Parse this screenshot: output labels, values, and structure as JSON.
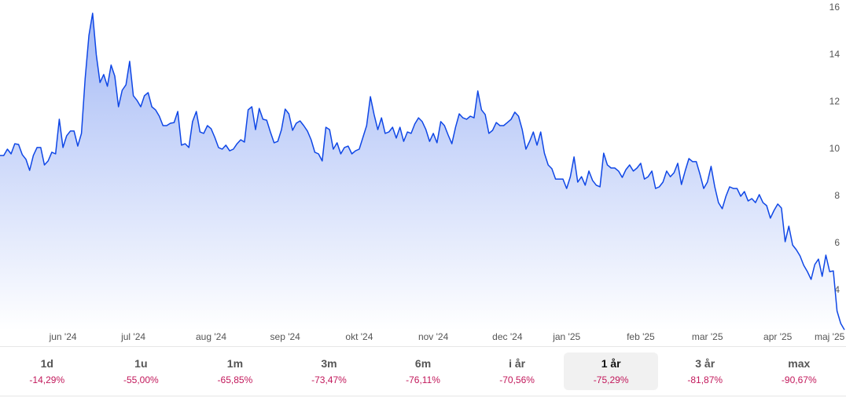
{
  "chart_data": {
    "type": "area",
    "color": "#0f47e6",
    "values": [
      9.73,
      9.73,
      10.0,
      9.8,
      10.23,
      10.2,
      9.77,
      9.57,
      9.1,
      9.73,
      10.07,
      10.07,
      9.33,
      9.5,
      9.87,
      9.8,
      11.27,
      10.07,
      10.57,
      10.77,
      10.77,
      10.13,
      10.67,
      13.0,
      14.83,
      15.77,
      14.0,
      12.83,
      13.17,
      12.67,
      13.57,
      13.1,
      11.8,
      12.5,
      12.73,
      13.73,
      12.27,
      12.07,
      11.8,
      12.27,
      12.4,
      11.8,
      11.67,
      11.4,
      11.0,
      11.0,
      11.1,
      11.13,
      11.6,
      10.17,
      10.23,
      10.07,
      11.17,
      11.6,
      10.73,
      10.67,
      11.0,
      10.87,
      10.5,
      10.07,
      10.0,
      10.17,
      9.93,
      10.0,
      10.23,
      10.4,
      10.3,
      11.67,
      11.8,
      10.83,
      11.73,
      11.27,
      11.23,
      10.73,
      10.27,
      10.33,
      10.83,
      11.7,
      11.5,
      10.8,
      11.1,
      11.2,
      11.0,
      10.77,
      10.4,
      9.87,
      9.8,
      9.5,
      10.93,
      10.83,
      10.0,
      10.27,
      9.8,
      10.07,
      10.13,
      9.8,
      9.93,
      10.0,
      10.5,
      11.0,
      12.23,
      11.47,
      10.83,
      11.33,
      10.67,
      10.73,
      10.93,
      10.47,
      10.93,
      10.33,
      10.73,
      10.67,
      11.07,
      11.33,
      11.17,
      10.83,
      10.33,
      10.67,
      10.27,
      11.17,
      11.0,
      10.6,
      10.23,
      10.93,
      11.5,
      11.33,
      11.27,
      11.4,
      11.33,
      12.47,
      11.67,
      11.47,
      10.67,
      10.8,
      11.13,
      11.0,
      11.0,
      11.13,
      11.27,
      11.57,
      11.4,
      10.83,
      10.0,
      10.33,
      10.73,
      10.17,
      10.73,
      9.83,
      9.33,
      9.17,
      8.73,
      8.73,
      8.73,
      8.33,
      8.83,
      9.67,
      8.6,
      8.83,
      8.47,
      9.07,
      8.67,
      8.47,
      8.4,
      9.83,
      9.33,
      9.2,
      9.2,
      9.07,
      8.8,
      9.13,
      9.33,
      9.07,
      9.2,
      9.4,
      8.73,
      8.83,
      9.07,
      8.33,
      8.4,
      8.6,
      9.07,
      8.83,
      9.0,
      9.4,
      8.5,
      9.07,
      9.6,
      9.47,
      9.47,
      8.93,
      8.33,
      8.6,
      9.27,
      8.4,
      7.73,
      7.47,
      8.0,
      8.4,
      8.33,
      8.33,
      8.0,
      8.2,
      7.8,
      7.9,
      7.73,
      8.07,
      7.73,
      7.6,
      7.07,
      7.4,
      7.67,
      7.5,
      6.07,
      6.73,
      5.93,
      5.73,
      5.47,
      5.07,
      4.8,
      4.47,
      5.1,
      5.33,
      4.6,
      5.5,
      4.8,
      4.83,
      3.13,
      2.6,
      2.33
    ],
    "xlim": [
      0,
      228
    ],
    "xticks": [
      {
        "value": 17,
        "label": "jun '24"
      },
      {
        "value": 36,
        "label": "jul '24"
      },
      {
        "value": 57,
        "label": "aug '24"
      },
      {
        "value": 77,
        "label": "sep '24"
      },
      {
        "value": 97,
        "label": "okt '24"
      },
      {
        "value": 117,
        "label": "nov '24"
      },
      {
        "value": 137,
        "label": "dec '24"
      },
      {
        "value": 153,
        "label": "jan '25"
      },
      {
        "value": 173,
        "label": "feb '25"
      },
      {
        "value": 191,
        "label": "mar '25"
      },
      {
        "value": 210,
        "label": "apr '25"
      },
      {
        "value": 224,
        "label": "maj '25"
      }
    ],
    "ylim": [
      2.3,
      16.3
    ],
    "yticks": [
      4,
      6,
      8,
      10,
      12,
      14,
      16
    ],
    "grid": false
  },
  "periods": [
    {
      "label": "1d",
      "change": "-14,29%"
    },
    {
      "label": "1u",
      "change": "-55,00%"
    },
    {
      "label": "1m",
      "change": "-65,85%"
    },
    {
      "label": "3m",
      "change": "-73,47%"
    },
    {
      "label": "6m",
      "change": "-76,11%"
    },
    {
      "label": "i år",
      "change": "-70,56%"
    },
    {
      "label": "1 år",
      "change": "-75,29%",
      "selected": true
    },
    {
      "label": "3 år",
      "change": "-81,87%"
    },
    {
      "label": "max",
      "change": "-90,67%"
    }
  ]
}
